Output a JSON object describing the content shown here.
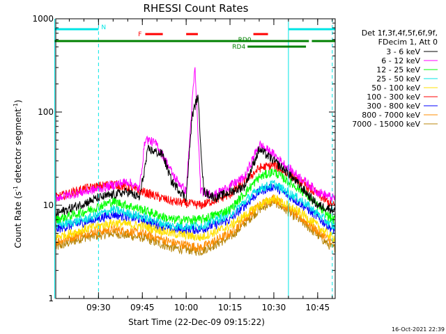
{
  "chart_data": {
    "type": "line",
    "title": "RHESSI Count Rates",
    "xlabel": "Start Time (22-Dec-09 09:15:22)",
    "ylabel": "Count Rate (s",
    "ylabel_sup1": "-1",
    "ylabel_mid": " detector segment",
    "ylabel_sup2": "-1",
    "ylabel_end": ")",
    "y_scale": "log",
    "ylim": [
      1,
      1000
    ],
    "xlim": [
      "09:15:22",
      "10:51:00"
    ],
    "x_ticks": [
      "09:30",
      "09:45",
      "10:00",
      "10:15",
      "10:30",
      "10:45"
    ],
    "y_ticks": [
      "1",
      "10",
      "100",
      "1000"
    ],
    "grid": false,
    "legend_header": [
      "Det 1f,3f,4f,5f,6f,9f,",
      "FDecim 1, Att 0"
    ],
    "legend_position": "right",
    "series": [
      {
        "name": "3 - 6 keV",
        "color": "#000000",
        "x": [
          "09:15",
          "09:30",
          "09:40",
          "09:44",
          "09:47",
          "09:52",
          "09:55",
          "10:00",
          "10:02",
          "10:04",
          "10:06",
          "10:10",
          "10:20",
          "10:25",
          "10:30",
          "10:35",
          "10:45",
          "10:50"
        ],
        "values": [
          8,
          12,
          14,
          12,
          40,
          35,
          18,
          12,
          90,
          150,
          14,
          12,
          16,
          40,
          30,
          22,
          10,
          9
        ]
      },
      {
        "name": "6 - 12 keV",
        "color": "#ff00ff",
        "x": [
          "09:15",
          "09:30",
          "09:40",
          "09:44",
          "09:46",
          "09:50",
          "09:56",
          "10:00",
          "10:02",
          "10:03",
          "10:05",
          "10:10",
          "10:20",
          "10:25",
          "10:30",
          "10:35",
          "10:45",
          "10:50"
        ],
        "values": [
          12,
          15,
          18,
          15,
          52,
          45,
          20,
          14,
          120,
          300,
          14,
          13,
          20,
          45,
          35,
          25,
          14,
          12
        ]
      },
      {
        "name": "12 - 25 keV",
        "color": "#00ff00",
        "x": [
          "09:15",
          "09:25",
          "09:35",
          "09:45",
          "09:55",
          "10:05",
          "10:15",
          "10:25",
          "10:30",
          "10:40",
          "10:50"
        ],
        "values": [
          7,
          8.5,
          11,
          9,
          7,
          7,
          9,
          20,
          23,
          14,
          7
        ]
      },
      {
        "name": "25 - 50 keV",
        "color": "#00e5e5",
        "x": [
          "09:15",
          "09:25",
          "09:35",
          "09:45",
          "09:55",
          "10:05",
          "10:15",
          "10:25",
          "10:30",
          "10:40",
          "10:50"
        ],
        "values": [
          6,
          7,
          9,
          7.5,
          6,
          6,
          8,
          15,
          17,
          11,
          6
        ]
      },
      {
        "name": "50 - 100 keV",
        "color": "#ffe000",
        "x": [
          "09:15",
          "09:25",
          "09:35",
          "09:45",
          "09:55",
          "10:05",
          "10:15",
          "10:25",
          "10:30",
          "10:40",
          "10:50"
        ],
        "values": [
          4.5,
          5.5,
          6.5,
          6,
          5,
          4.5,
          6,
          10,
          12,
          8,
          4.5
        ]
      },
      {
        "name": "100 - 300 keV",
        "color": "#ff0000",
        "x": [
          "09:15",
          "09:25",
          "09:35",
          "09:45",
          "09:55",
          "10:05",
          "10:15",
          "10:25",
          "10:30",
          "10:40",
          "10:50"
        ],
        "values": [
          12,
          15,
          17,
          14,
          11,
          10,
          13,
          25,
          27,
          17,
          10
        ]
      },
      {
        "name": "300 - 800 keV",
        "color": "#0000ff",
        "x": [
          "09:15",
          "09:25",
          "09:35",
          "09:45",
          "09:55",
          "10:05",
          "10:15",
          "10:25",
          "10:30",
          "10:40",
          "10:50"
        ],
        "values": [
          5.5,
          6.5,
          8,
          7,
          5.5,
          5.5,
          7,
          14,
          16,
          10,
          5.5
        ]
      },
      {
        "name": "800 - 7000 keV",
        "color": "#ff8c00",
        "x": [
          "09:15",
          "09:25",
          "09:35",
          "09:45",
          "09:55",
          "10:05",
          "10:15",
          "10:25",
          "10:30",
          "10:40",
          "10:50"
        ],
        "values": [
          4,
          5,
          5.5,
          5,
          4,
          3.5,
          5,
          10,
          12,
          7,
          4
        ]
      },
      {
        "name": "7000 - 15000 keV",
        "color": "#b8860b",
        "x": [
          "09:15",
          "09:25",
          "09:35",
          "09:45",
          "09:55",
          "10:05",
          "10:15",
          "10:25",
          "10:30",
          "10:40",
          "10:50"
        ],
        "values": [
          3.5,
          4.5,
          5,
          4.5,
          3.5,
          3.2,
          4.5,
          9,
          11,
          6.5,
          3.5
        ]
      }
    ],
    "flag_bars": [
      {
        "label": "N",
        "color": "#00e5e5",
        "segments": [
          [
            "09:15",
            "09:30"
          ],
          [
            "10:35",
            "10:51"
          ]
        ]
      },
      {
        "label": "F",
        "color": "#ff0000",
        "segments": [
          [
            "09:46",
            "09:52"
          ],
          [
            "10:00",
            "10:04"
          ],
          [
            "10:23",
            "10:28"
          ]
        ]
      },
      {
        "label": "RD0",
        "color": "#008000",
        "segments": [
          [
            "09:15",
            "10:42"
          ],
          [
            "10:43",
            "10:51"
          ]
        ]
      },
      {
        "label": "RD4",
        "color": "#008000",
        "segments": [
          [
            "10:21",
            "10:41"
          ]
        ]
      }
    ],
    "vertical_markers": [
      {
        "time": "09:15",
        "style": "solid",
        "color": "#00e5e5"
      },
      {
        "time": "09:30",
        "style": "dashed",
        "color": "#00e5e5"
      },
      {
        "time": "10:35",
        "style": "solid",
        "color": "#00e5e5"
      },
      {
        "time": "10:50",
        "style": "dashed",
        "color": "#00e5e5"
      }
    ],
    "timestamp": "16-Oct-2021 22:39"
  }
}
